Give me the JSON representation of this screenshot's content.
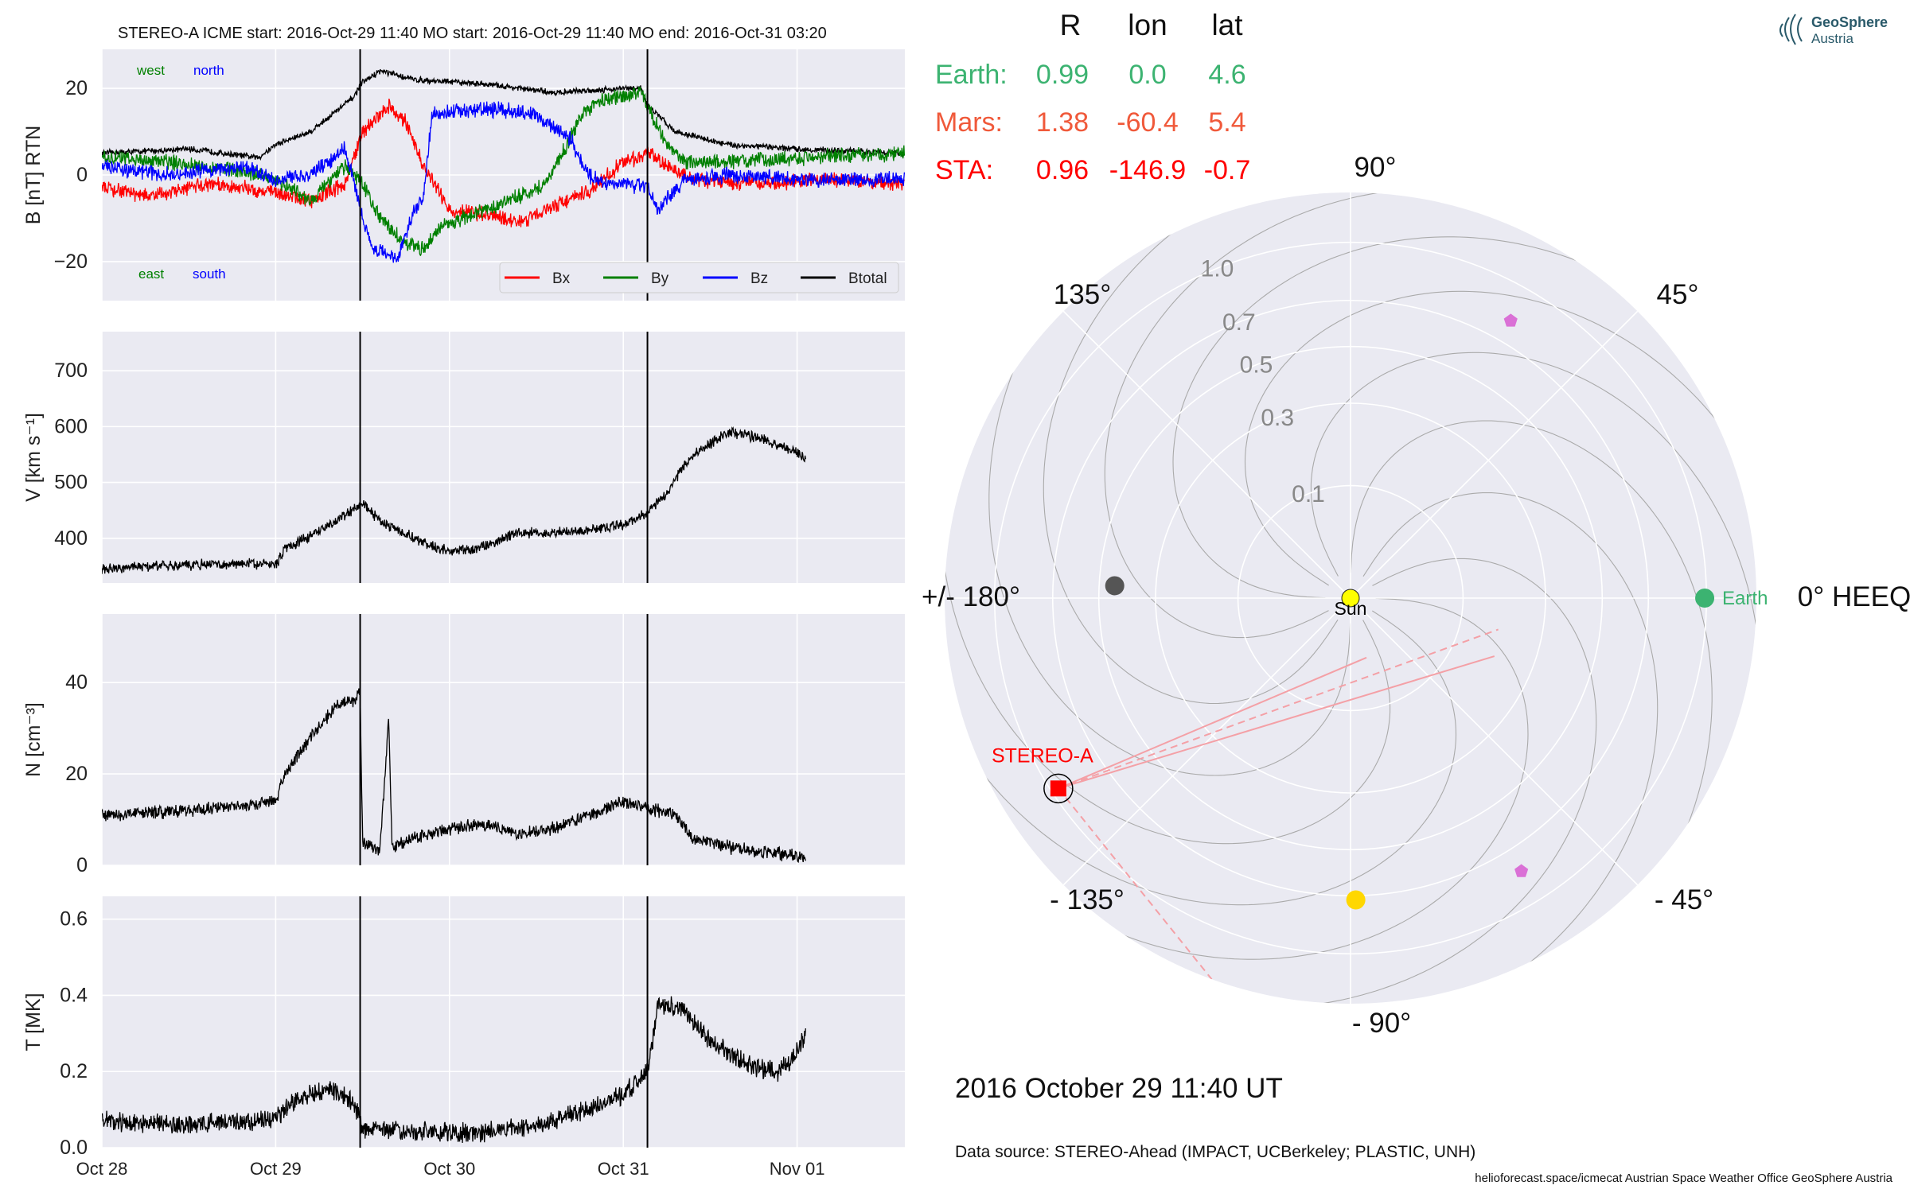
{
  "header": {
    "title": "STEREO-A    ICME start: 2016-Oct-29 11:40    MO start: 2016-Oct-29 11:40    MO end: 2016-Oct-31 03:20"
  },
  "logo": {
    "line1": "GeoSphere",
    "line2": "Austria"
  },
  "colors": {
    "panel_bg": "#eaeaf2",
    "grid": "#ffffff",
    "bx": "#ff0000",
    "by": "#008000",
    "bz": "#0000ff",
    "btotal": "#000000",
    "earth": "#3cb371",
    "mars": "#f0593a",
    "sta": "#ff0000",
    "sun": "#ffff00",
    "venus": "#ffd700",
    "mercury": "#555555",
    "probe": "#da70d6",
    "sta_lines": "#f4a0a6"
  },
  "positions_table": {
    "headers": [
      "R",
      "lon",
      "lat"
    ],
    "rows": [
      {
        "label": "Earth:",
        "r": "0.99",
        "lon": "0.0",
        "lat": "4.6",
        "color": "#3cb371"
      },
      {
        "label": "Mars:",
        "r": "1.38",
        "lon": "-60.4",
        "lat": "5.4",
        "color": "#f0593a"
      },
      {
        "label": "STA:",
        "r": "0.96",
        "lon": "-146.9",
        "lat": "-0.7",
        "color": "#ff0000"
      }
    ]
  },
  "polar": {
    "angle_labels": [
      "0° HEEQ",
      "45°",
      "90°",
      "135°",
      "+/- 180°",
      "- 135°",
      "- 90°",
      "- 45°"
    ],
    "radial_labels": [
      "0.1",
      "0.3",
      "0.5",
      "0.7",
      "1.0"
    ],
    "radial_values": [
      0.1,
      0.3,
      0.5,
      0.7,
      1.0
    ],
    "bodies": [
      {
        "name": "Sun",
        "label": "Sun",
        "r": 0.0,
        "lon": 0,
        "color": "#ffff00"
      },
      {
        "name": "Earth",
        "label": "Earth",
        "r": 0.99,
        "lon": 0.0,
        "color": "#3cb371"
      },
      {
        "name": "STEREO-A",
        "label": "STEREO-A",
        "r": 0.96,
        "lon": -146.9,
        "color": "#ff0000"
      },
      {
        "name": "mercury",
        "label": "",
        "r": 0.44,
        "lon": 177,
        "color": "#555555"
      },
      {
        "name": "venus",
        "label": "",
        "r": 0.72,
        "lon": -89,
        "color": "#ffd700"
      },
      {
        "name": "probe-1",
        "label": "",
        "r": 0.81,
        "lon": 60,
        "color": "#da70d6"
      },
      {
        "name": "probe-2",
        "label": "",
        "r": 0.82,
        "lon": -58,
        "color": "#da70d6"
      }
    ],
    "date_label": "2016 October 29  11:40 UT"
  },
  "footer": {
    "source": "Data source: STEREO-Ahead (IMPACT, UCBerkeley; PLASTIC, UNH)",
    "credits": "helioforecast.space/icmecat   Austrian Space Weather Office   GeoSphere Austria"
  },
  "chart_data": [
    {
      "type": "line",
      "ylabel": "B [nT] RTN",
      "ylim": [
        -29,
        29
      ],
      "yticks": [
        -20,
        0,
        20
      ],
      "ytick_labels": [
        "−20",
        "0",
        "20"
      ],
      "xticks": [
        0,
        1,
        2,
        3,
        4
      ],
      "xtick_labels": [
        "Oct 28",
        "Oct 29",
        "Oct 30",
        "Oct 31",
        "Nov 01"
      ],
      "xlim": [
        0,
        4.62
      ],
      "event_lines": [
        1.486,
        3.139
      ],
      "annotations": [
        {
          "text": "west",
          "color": "#008000",
          "pos": "top-left"
        },
        {
          "text": "north",
          "color": "#0000ff",
          "pos": "top-left"
        },
        {
          "text": "east",
          "color": "#008000",
          "pos": "bottom-left"
        },
        {
          "text": "south",
          "color": "#0000ff",
          "pos": "bottom-left"
        }
      ],
      "legend": {
        "position": "bottom-right",
        "entries": [
          "Bx",
          "By",
          "Bz",
          "Btotal"
        ]
      },
      "series": [
        {
          "name": "Btotal",
          "color": "#000000",
          "noise": 0.6,
          "points": [
            [
              0,
              5
            ],
            [
              0.5,
              6
            ],
            [
              0.9,
              4
            ],
            [
              1.0,
              7
            ],
            [
              1.2,
              10
            ],
            [
              1.45,
              18
            ],
            [
              1.49,
              21
            ],
            [
              1.6,
              24
            ],
            [
              1.8,
              22
            ],
            [
              2.2,
              21
            ],
            [
              2.6,
              19
            ],
            [
              3.0,
              20
            ],
            [
              3.1,
              20
            ],
            [
              3.14,
              16
            ],
            [
              3.3,
              10
            ],
            [
              3.6,
              7
            ],
            [
              4.0,
              6
            ],
            [
              4.62,
              5
            ]
          ]
        },
        {
          "name": "Bx",
          "color": "#ff0000",
          "noise": 1.5,
          "points": [
            [
              0,
              -3
            ],
            [
              0.3,
              -5
            ],
            [
              0.6,
              -2
            ],
            [
              1.0,
              -4
            ],
            [
              1.2,
              -6
            ],
            [
              1.4,
              -2
            ],
            [
              1.5,
              10
            ],
            [
              1.65,
              16
            ],
            [
              1.75,
              12
            ],
            [
              1.85,
              2
            ],
            [
              2.0,
              -8
            ],
            [
              2.2,
              -9
            ],
            [
              2.4,
              -11
            ],
            [
              2.6,
              -7
            ],
            [
              2.8,
              -4
            ],
            [
              3.0,
              3
            ],
            [
              3.14,
              5
            ],
            [
              3.25,
              2
            ],
            [
              3.4,
              -1
            ],
            [
              3.8,
              -2
            ],
            [
              4.2,
              -1
            ],
            [
              4.62,
              -2
            ]
          ]
        },
        {
          "name": "By",
          "color": "#008000",
          "noise": 1.5,
          "points": [
            [
              0,
              4
            ],
            [
              0.4,
              3
            ],
            [
              0.8,
              1
            ],
            [
              1.0,
              -1
            ],
            [
              1.2,
              -6
            ],
            [
              1.4,
              2
            ],
            [
              1.5,
              -2
            ],
            [
              1.6,
              -10
            ],
            [
              1.75,
              -16
            ],
            [
              1.85,
              -17
            ],
            [
              1.95,
              -12
            ],
            [
              2.2,
              -8
            ],
            [
              2.4,
              -5
            ],
            [
              2.55,
              -2
            ],
            [
              2.65,
              5
            ],
            [
              2.75,
              13
            ],
            [
              2.85,
              17
            ],
            [
              3.1,
              19
            ],
            [
              3.25,
              7
            ],
            [
              3.35,
              3
            ],
            [
              3.6,
              3
            ],
            [
              4.0,
              4
            ],
            [
              4.62,
              5
            ]
          ]
        },
        {
          "name": "Bz",
          "color": "#0000ff",
          "noise": 1.5,
          "points": [
            [
              0,
              2
            ],
            [
              0.4,
              0
            ],
            [
              0.8,
              2
            ],
            [
              1.0,
              -1
            ],
            [
              1.2,
              0
            ],
            [
              1.4,
              6
            ],
            [
              1.49,
              -8
            ],
            [
              1.55,
              -17
            ],
            [
              1.7,
              -19
            ],
            [
              1.8,
              -8
            ],
            [
              1.85,
              -5
            ],
            [
              1.9,
              14
            ],
            [
              2.1,
              15
            ],
            [
              2.3,
              15
            ],
            [
              2.5,
              14
            ],
            [
              2.6,
              11
            ],
            [
              2.7,
              8
            ],
            [
              2.75,
              4
            ],
            [
              2.8,
              0
            ],
            [
              2.9,
              -2
            ],
            [
              3.0,
              -2
            ],
            [
              3.14,
              -3
            ],
            [
              3.2,
              -8
            ],
            [
              3.35,
              -1
            ],
            [
              3.6,
              0
            ],
            [
              4.0,
              -1
            ],
            [
              4.62,
              -1
            ]
          ]
        }
      ]
    },
    {
      "type": "line",
      "ylabel": "V [km s⁻¹]",
      "ylim": [
        320,
        770
      ],
      "yticks": [
        400,
        500,
        600,
        700
      ],
      "ytick_labels": [
        "400",
        "500",
        "600",
        "700"
      ],
      "xticks": [
        0,
        1,
        2,
        3,
        4
      ],
      "xtick_labels": [
        "Oct 28",
        "Oct 29",
        "Oct 30",
        "Oct 31",
        "Nov 01"
      ],
      "xlim": [
        0,
        4.62
      ],
      "event_lines": [
        1.486,
        3.139
      ],
      "series": [
        {
          "name": "",
          "color": "#000000",
          "noise": 8,
          "points": [
            [
              0,
              345
            ],
            [
              0.4,
              352
            ],
            [
              0.8,
              355
            ],
            [
              1.0,
              352
            ],
            [
              1.05,
              380
            ],
            [
              1.2,
              405
            ],
            [
              1.4,
              440
            ],
            [
              1.5,
              465
            ],
            [
              1.6,
              430
            ],
            [
              1.8,
              400
            ],
            [
              2.0,
              375
            ],
            [
              2.2,
              385
            ],
            [
              2.4,
              410
            ],
            [
              2.6,
              410
            ],
            [
              2.8,
              415
            ],
            [
              3.0,
              425
            ],
            [
              3.14,
              445
            ],
            [
              3.25,
              480
            ],
            [
              3.35,
              530
            ],
            [
              3.45,
              560
            ],
            [
              3.6,
              590
            ],
            [
              3.8,
              580
            ],
            [
              3.9,
              565
            ],
            [
              4.0,
              555
            ],
            [
              4.05,
              540
            ]
          ]
        }
      ]
    },
    {
      "type": "line",
      "ylabel": "N [cm⁻³]",
      "ylim": [
        0,
        55
      ],
      "yticks": [
        0,
        20,
        40
      ],
      "ytick_labels": [
        "0",
        "20",
        "40"
      ],
      "xticks": [
        0,
        1,
        2,
        3,
        4
      ],
      "xtick_labels": [
        "Oct 28",
        "Oct 29",
        "Oct 30",
        "Oct 31",
        "Nov 01"
      ],
      "xlim": [
        0,
        4.62
      ],
      "event_lines": [
        1.486,
        3.139
      ],
      "series": [
        {
          "name": "",
          "color": "#000000",
          "noise": 1.2,
          "points": [
            [
              0,
              11
            ],
            [
              0.5,
              12
            ],
            [
              0.8,
              13
            ],
            [
              1.0,
              14
            ],
            [
              1.05,
              20
            ],
            [
              1.2,
              28
            ],
            [
              1.35,
              35
            ],
            [
              1.45,
              36
            ],
            [
              1.486,
              38
            ],
            [
              1.5,
              5
            ],
            [
              1.6,
              3
            ],
            [
              1.65,
              32
            ],
            [
              1.67,
              4
            ],
            [
              1.8,
              6
            ],
            [
              2.0,
              8
            ],
            [
              2.2,
              9
            ],
            [
              2.4,
              7
            ],
            [
              2.6,
              8
            ],
            [
              2.8,
              11
            ],
            [
              3.0,
              14
            ],
            [
              3.1,
              13
            ],
            [
              3.3,
              11
            ],
            [
              3.4,
              6
            ],
            [
              3.6,
              4
            ],
            [
              3.8,
              3
            ],
            [
              4.0,
              2
            ],
            [
              4.05,
              2
            ]
          ]
        }
      ]
    },
    {
      "type": "line",
      "ylabel": "T [MK]",
      "ylim": [
        0,
        0.66
      ],
      "yticks": [
        0.0,
        0.2,
        0.4,
        0.6
      ],
      "ytick_labels": [
        "0.0",
        "0.2",
        "0.4",
        "0.6"
      ],
      "xticks": [
        0,
        1,
        2,
        3,
        4
      ],
      "xtick_labels": [
        "Oct 28",
        "Oct 29",
        "Oct 30",
        "Oct 31",
        "Nov 01"
      ],
      "xlim": [
        0,
        4.62
      ],
      "event_lines": [
        1.486,
        3.139
      ],
      "series": [
        {
          "name": "",
          "color": "#000000",
          "noise": 0.022,
          "points": [
            [
              0,
              0.07
            ],
            [
              0.5,
              0.06
            ],
            [
              0.9,
              0.07
            ],
            [
              1.0,
              0.08
            ],
            [
              1.1,
              0.12
            ],
            [
              1.3,
              0.16
            ],
            [
              1.45,
              0.12
            ],
            [
              1.5,
              0.05
            ],
            [
              1.8,
              0.04
            ],
            [
              2.2,
              0.04
            ],
            [
              2.5,
              0.06
            ],
            [
              2.8,
              0.1
            ],
            [
              3.0,
              0.14
            ],
            [
              3.14,
              0.2
            ],
            [
              3.2,
              0.38
            ],
            [
              3.35,
              0.36
            ],
            [
              3.5,
              0.28
            ],
            [
              3.7,
              0.22
            ],
            [
              3.9,
              0.2
            ],
            [
              4.0,
              0.25
            ],
            [
              4.05,
              0.3
            ]
          ]
        }
      ]
    }
  ]
}
